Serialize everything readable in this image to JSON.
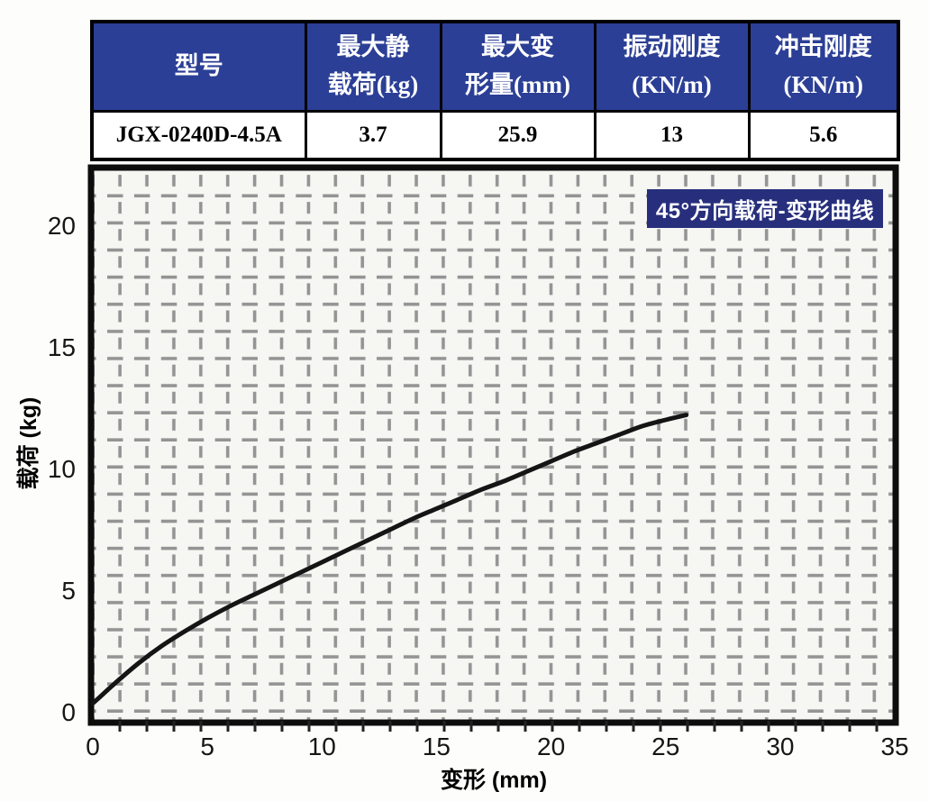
{
  "table": {
    "headers": [
      {
        "l1": "型号",
        "l2": ""
      },
      {
        "l1": "最大静",
        "l2": "载荷(kg)"
      },
      {
        "l1": "最大变",
        "l2": "形量(mm)"
      },
      {
        "l1": "振动刚度",
        "l2": "(KN/m)"
      },
      {
        "l1": "冲击刚度",
        "l2": "(KN/m)"
      }
    ],
    "row": {
      "cells": [
        "JGX-0240D-4.5A",
        "3.7",
        "25.9",
        "13",
        "5.6"
      ]
    }
  },
  "chart_data": {
    "type": "line",
    "title": "45°方向载荷-变形曲线",
    "xlabel": "变形 (mm)",
    "ylabel": "载荷 (kg)",
    "xlim": [
      0,
      35.2
    ],
    "ylim": [
      -0.45,
      22.4
    ],
    "x_ticks": [
      0,
      5,
      10,
      15,
      20,
      25,
      30,
      35
    ],
    "y_ticks": [
      0,
      5,
      10,
      15,
      20
    ],
    "grid": "dashed-gray",
    "legend": "none",
    "series": [
      {
        "name": "45°方向载荷-变形曲线",
        "points": [
          [
            0,
            0.35
          ],
          [
            0.3,
            0.6
          ],
          [
            1,
            1.2
          ],
          [
            2,
            2.0
          ],
          [
            3,
            2.7
          ],
          [
            4,
            3.3
          ],
          [
            5,
            3.85
          ],
          [
            6,
            4.35
          ],
          [
            7,
            4.8
          ],
          [
            8,
            5.25
          ],
          [
            9,
            5.7
          ],
          [
            10,
            6.15
          ],
          [
            11,
            6.6
          ],
          [
            12,
            7.05
          ],
          [
            13,
            7.5
          ],
          [
            14,
            7.95
          ],
          [
            15,
            8.35
          ],
          [
            16,
            8.75
          ],
          [
            17,
            9.15
          ],
          [
            18,
            9.5
          ],
          [
            19,
            9.9
          ],
          [
            20,
            10.3
          ],
          [
            21,
            10.7
          ],
          [
            22,
            11.05
          ],
          [
            23,
            11.4
          ],
          [
            24,
            11.75
          ],
          [
            25,
            12.0
          ],
          [
            25.9,
            12.2
          ]
        ]
      }
    ]
  },
  "colors": {
    "header_bg": "#2b3f96",
    "badge_bg": "#272f7d",
    "grid": "#949494",
    "curve": "#151515",
    "frame": "#0d0d0d",
    "plot_bg": "#f6f6f3"
  }
}
